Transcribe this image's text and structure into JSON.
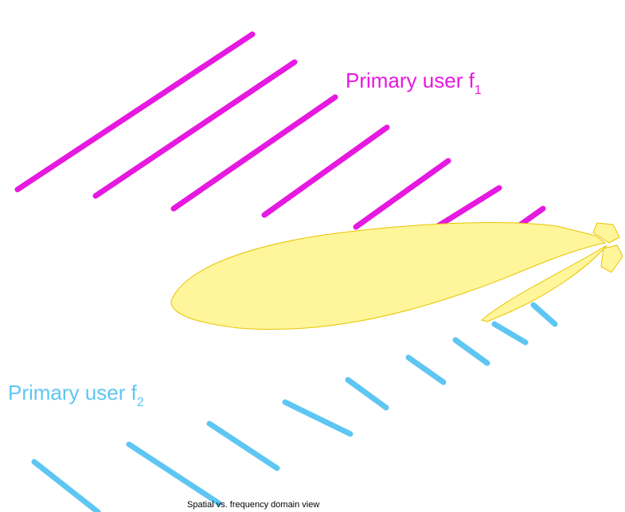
{
  "labels": [
    {
      "text": "Primary user f",
      "subscript": "1"
    },
    {
      "text": "Primary user f",
      "subscript": "2"
    }
  ],
  "caption": "Spatial vs. frequency domain view"
}
